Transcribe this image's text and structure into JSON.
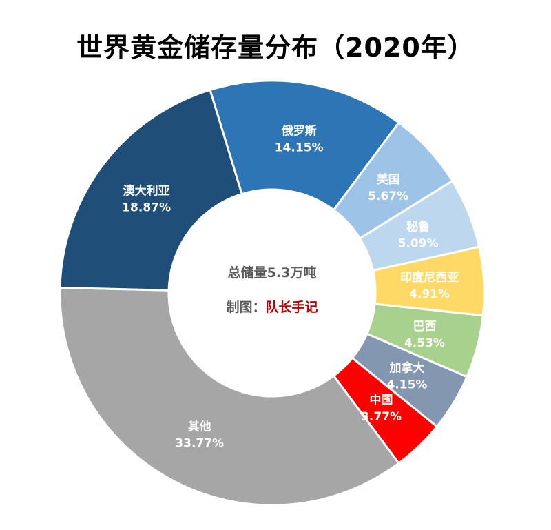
{
  "chart_data": {
    "type": "pie",
    "title": "世界黄金储存量分布（2020年）",
    "center": {
      "total_text": "总储量5.3万吨",
      "credit_prefix": "制图：",
      "credit_name": "队长手记"
    },
    "slices": [
      {
        "name": "俄罗斯",
        "value": 14.15,
        "label": "14.15%",
        "color": "#2e75b6",
        "text_color": "#ffffff"
      },
      {
        "name": "美国",
        "value": 5.67,
        "label": "5.67%",
        "color": "#9dc3e6",
        "text_color": "#ffffff"
      },
      {
        "name": "秘鲁",
        "value": 5.09,
        "label": "5.09%",
        "color": "#bdd7ee",
        "text_color": "#ffffff"
      },
      {
        "name": "印度尼西亚",
        "value": 4.91,
        "label": "4.91%",
        "color": "#ffd966",
        "text_color": "#ffffff"
      },
      {
        "name": "巴西",
        "value": 4.53,
        "label": "4.53%",
        "color": "#a9d18e",
        "text_color": "#ffffff"
      },
      {
        "name": "加拿大",
        "value": 4.15,
        "label": "4.15%",
        "color": "#8497b0",
        "text_color": "#ffffff"
      },
      {
        "name": "中国",
        "value": 3.77,
        "label": "3.77%",
        "color": "#ff0000",
        "text_color": "#ffffff"
      },
      {
        "name": "其他",
        "value": 33.77,
        "label": "33.77%",
        "color": "#a6a6a6",
        "text_color": "#ffffff"
      },
      {
        "name": "澳大利亚",
        "value": 18.87,
        "label": "18.87%",
        "color": "#1f4e79",
        "text_color": "#ffffff"
      }
    ]
  }
}
